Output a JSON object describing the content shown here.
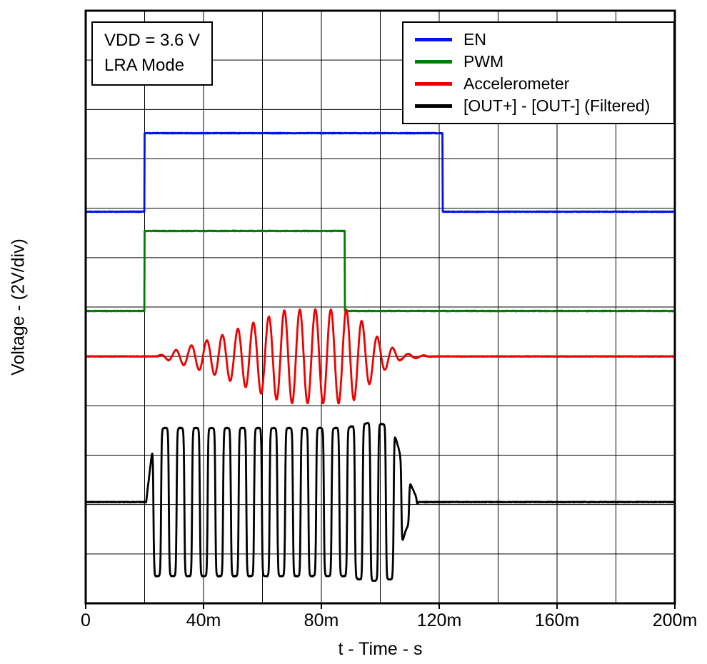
{
  "annotation": {
    "lines": [
      "VDD = 3.6 V",
      "LRA Mode"
    ]
  },
  "chart_data": {
    "type": "line",
    "title": "",
    "xlabel": "t - Time - s",
    "ylabel": "Voltage - (2V/div)",
    "xlim_s": [
      0,
      0.2
    ],
    "x_minor_step_s": 0.02,
    "x_major_ticks_s": [
      0,
      0.04,
      0.08,
      0.12,
      0.16,
      0.2
    ],
    "x_tick_labels": [
      "0",
      "40m",
      "80m",
      "120m",
      "160m",
      "200m"
    ],
    "y_divisions": 12,
    "volts_per_div": 2,
    "grid": "on",
    "legend_position": "top-right",
    "legend": [
      {
        "label": "EN",
        "color": "#0012ee"
      },
      {
        "label": "PWM",
        "color": "#007d00"
      },
      {
        "label": "Accelerometer",
        "color": "#ee0000"
      },
      {
        "label": "[OUT+] - [OUT-] (Filtered)",
        "color": "#000000"
      }
    ],
    "series": [
      {
        "name": "EN",
        "shape": "pulse",
        "color": "#0012ee",
        "low_div": 4.07,
        "high_div": 2.48,
        "t_on_s": 0.02,
        "t_off_s": 0.1212
      },
      {
        "name": "PWM",
        "shape": "pulse",
        "color": "#007d00",
        "low_div": 6.08,
        "high_div": 4.46,
        "t_on_s": 0.02,
        "t_off_s": 0.088
      },
      {
        "name": "Accelerometer",
        "shape": "sine_burst",
        "color": "#ee0000",
        "center_div": 7.0,
        "amp_div": 0.95,
        "freq_hz": 190,
        "phase": 0,
        "env": [
          [
            0.024,
            0
          ],
          [
            0.045,
            0.42
          ],
          [
            0.068,
            1
          ],
          [
            0.09,
            1
          ],
          [
            0.1,
            0.35
          ],
          [
            0.107,
            0.07
          ],
          [
            0.118,
            0
          ]
        ]
      },
      {
        "name": "[OUT+] - [OUT-] (Filtered)",
        "shape": "square_burst",
        "color": "#000000",
        "center_div": 9.95,
        "amp_div": 1.5,
        "freq_hz": 190,
        "squareness": 4,
        "phase": 0.2,
        "env": [
          [
            0.0205,
            0
          ],
          [
            0.0235,
            1
          ],
          [
            0.088,
            1
          ],
          [
            0.096,
            1.07
          ],
          [
            0.104,
            1.04
          ],
          [
            0.1085,
            0.4
          ],
          [
            0.113,
            0
          ]
        ]
      }
    ]
  }
}
